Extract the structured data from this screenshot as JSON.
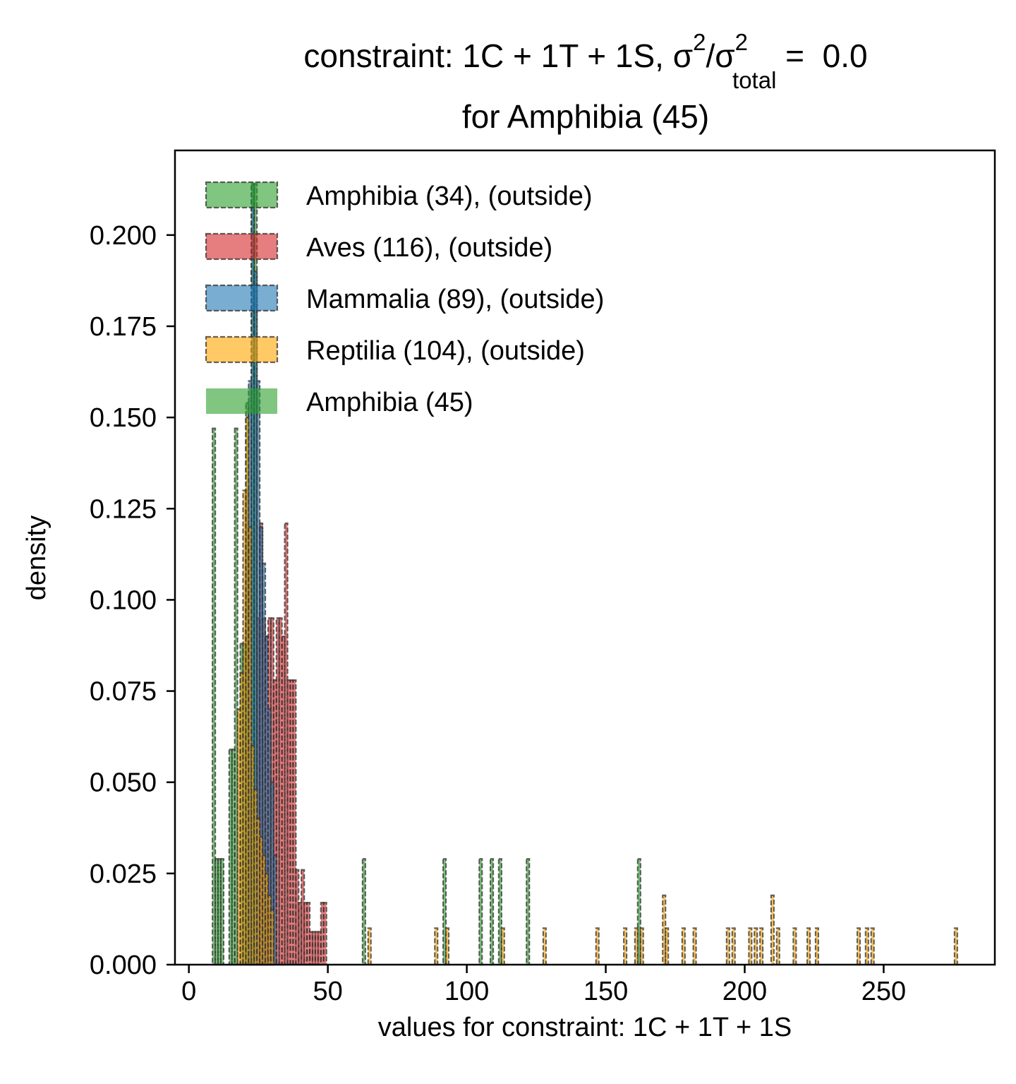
{
  "chart_data": {
    "type": "histogram",
    "title_line1": {
      "prefix": "constraint: 1C + 1T + 1S, ",
      "sigma": "σ",
      "exp": "2",
      "slash": "/",
      "sub": "total",
      "suffix": " =  0.0"
    },
    "title_line2": "for Amphibia (45)",
    "xlabel": "values for constraint: 1C + 1T + 1S",
    "ylabel": "density",
    "xlim": [
      -5,
      290
    ],
    "ylim": [
      0,
      0.2232
    ],
    "xticks": [
      0,
      50,
      100,
      150,
      200,
      250
    ],
    "xtick_labels": [
      "0",
      "50",
      "100",
      "150",
      "200",
      "250"
    ],
    "yticks": [
      0.0,
      0.025,
      0.05,
      0.075,
      0.1,
      0.125,
      0.15,
      0.175,
      0.2
    ],
    "ytick_labels": [
      "0.000",
      "0.025",
      "0.050",
      "0.075",
      "0.100",
      "0.125",
      "0.150",
      "0.175",
      "0.200"
    ],
    "legend_position": "upper-left",
    "series": [
      {
        "name": "Amphibia (34), (outside)",
        "color": "#2ca02c",
        "style": "dashed-edge",
        "bins": [
          [
            8.5,
            9.5,
            0.147
          ],
          [
            9.5,
            10.5,
            0.029
          ],
          [
            10.5,
            11.5,
            0.029
          ],
          [
            11.5,
            12.5,
            0.029
          ],
          [
            14.5,
            15.5,
            0.059
          ],
          [
            15.5,
            16.5,
            0.059
          ],
          [
            16.5,
            17.5,
            0.147
          ],
          [
            18.5,
            19.5,
            0.088
          ],
          [
            19.5,
            20.5,
            0.088
          ],
          [
            20.5,
            21.5,
            0.154
          ],
          [
            21.5,
            22.5,
            0.118
          ],
          [
            22.5,
            23.5,
            0.214
          ],
          [
            23.5,
            24.5,
            0.214
          ],
          [
            62.5,
            63.5,
            0.029
          ],
          [
            91.5,
            92.5,
            0.029
          ],
          [
            104.5,
            105.5,
            0.029
          ],
          [
            108.5,
            109.5,
            0.029
          ],
          [
            111.5,
            112.5,
            0.029
          ],
          [
            121.5,
            122.5,
            0.029
          ],
          [
            161.5,
            162.5,
            0.029
          ]
        ]
      },
      {
        "name": "Aves (116), (outside)",
        "color": "#d62728",
        "style": "dashed-edge",
        "bins": [
          [
            24.5,
            25.5,
            0.095
          ],
          [
            25.5,
            26.5,
            0.121
          ],
          [
            26.5,
            27.5,
            0.095
          ],
          [
            27.5,
            28.5,
            0.09
          ],
          [
            28.5,
            29.5,
            0.095
          ],
          [
            29.5,
            30.5,
            0.095
          ],
          [
            30.5,
            31.5,
            0.078
          ],
          [
            31.5,
            32.5,
            0.095
          ],
          [
            32.5,
            33.5,
            0.095
          ],
          [
            33.5,
            34.5,
            0.09
          ],
          [
            34.5,
            35.5,
            0.121
          ],
          [
            35.5,
            36.5,
            0.078
          ],
          [
            36.5,
            37.5,
            0.078
          ],
          [
            37.5,
            38.5,
            0.078
          ],
          [
            38.5,
            39.5,
            0.026
          ],
          [
            39.5,
            40.5,
            0.017
          ],
          [
            40.5,
            41.5,
            0.026
          ],
          [
            41.5,
            42.5,
            0.017
          ],
          [
            42.5,
            43.5,
            0.017
          ],
          [
            43.5,
            44.5,
            0.009
          ],
          [
            44.5,
            45.5,
            0.009
          ],
          [
            45.5,
            46.5,
            0.009
          ],
          [
            46.5,
            47.5,
            0.009
          ],
          [
            47.5,
            48.5,
            0.017
          ],
          [
            48.5,
            49.5,
            0.017
          ]
        ]
      },
      {
        "name": "Mammalia (89), (outside)",
        "color": "#1f77b4",
        "style": "dashed-edge",
        "bins": [
          [
            20.5,
            21.5,
            0.13
          ],
          [
            21.5,
            22.5,
            0.16
          ],
          [
            22.5,
            23.5,
            0.214
          ],
          [
            23.5,
            24.5,
            0.19
          ],
          [
            24.5,
            25.5,
            0.16
          ],
          [
            25.5,
            26.5,
            0.12
          ],
          [
            26.5,
            27.5,
            0.11
          ],
          [
            27.5,
            28.5,
            0.09
          ],
          [
            28.5,
            29.5,
            0.07
          ],
          [
            29.5,
            30.5,
            0.05
          ],
          [
            30.5,
            31.5,
            0.03
          ]
        ]
      },
      {
        "name": "Reptilia (104), (outside)",
        "color": "#ffa500",
        "style": "dashed-edge",
        "bins": [
          [
            17.5,
            18.5,
            0.07
          ],
          [
            18.5,
            19.5,
            0.08
          ],
          [
            19.5,
            20.5,
            0.13
          ],
          [
            20.5,
            21.5,
            0.15
          ],
          [
            21.5,
            22.5,
            0.12
          ],
          [
            22.5,
            23.5,
            0.06
          ],
          [
            23.5,
            24.5,
            0.048
          ],
          [
            24.5,
            25.5,
            0.04
          ],
          [
            25.5,
            26.5,
            0.035
          ],
          [
            26.5,
            27.5,
            0.03
          ],
          [
            27.5,
            28.5,
            0.025
          ],
          [
            28.5,
            29.5,
            0.019
          ],
          [
            29.5,
            30.5,
            0.015
          ],
          [
            64.5,
            65.5,
            0.01
          ],
          [
            88.5,
            89.5,
            0.01
          ],
          [
            92.5,
            93.5,
            0.01
          ],
          [
            112.5,
            113.5,
            0.01
          ],
          [
            127.5,
            128.5,
            0.01
          ],
          [
            146.5,
            147.5,
            0.01
          ],
          [
            156.5,
            157.5,
            0.01
          ],
          [
            160.5,
            161.5,
            0.01
          ],
          [
            162.5,
            163.5,
            0.01
          ],
          [
            170.5,
            171.5,
            0.019
          ],
          [
            171.5,
            172.5,
            0.01
          ],
          [
            177.5,
            178.5,
            0.01
          ],
          [
            181.5,
            182.5,
            0.01
          ],
          [
            193.5,
            194.5,
            0.01
          ],
          [
            195.5,
            196.5,
            0.01
          ],
          [
            201.5,
            202.5,
            0.01
          ],
          [
            203.5,
            204.5,
            0.01
          ],
          [
            205.5,
            206.5,
            0.01
          ],
          [
            209.5,
            210.5,
            0.019
          ],
          [
            211.5,
            212.5,
            0.01
          ],
          [
            217.5,
            218.5,
            0.01
          ],
          [
            222.5,
            223.5,
            0.01
          ],
          [
            225.5,
            226.5,
            0.01
          ],
          [
            240.5,
            241.5,
            0.01
          ],
          [
            243.5,
            244.5,
            0.01
          ],
          [
            245.5,
            246.5,
            0.01
          ],
          [
            275.5,
            276.5,
            0.01
          ]
        ]
      },
      {
        "name": "Amphibia (45)",
        "color": "#2ca02c",
        "style": "solid",
        "bins": []
      }
    ]
  }
}
